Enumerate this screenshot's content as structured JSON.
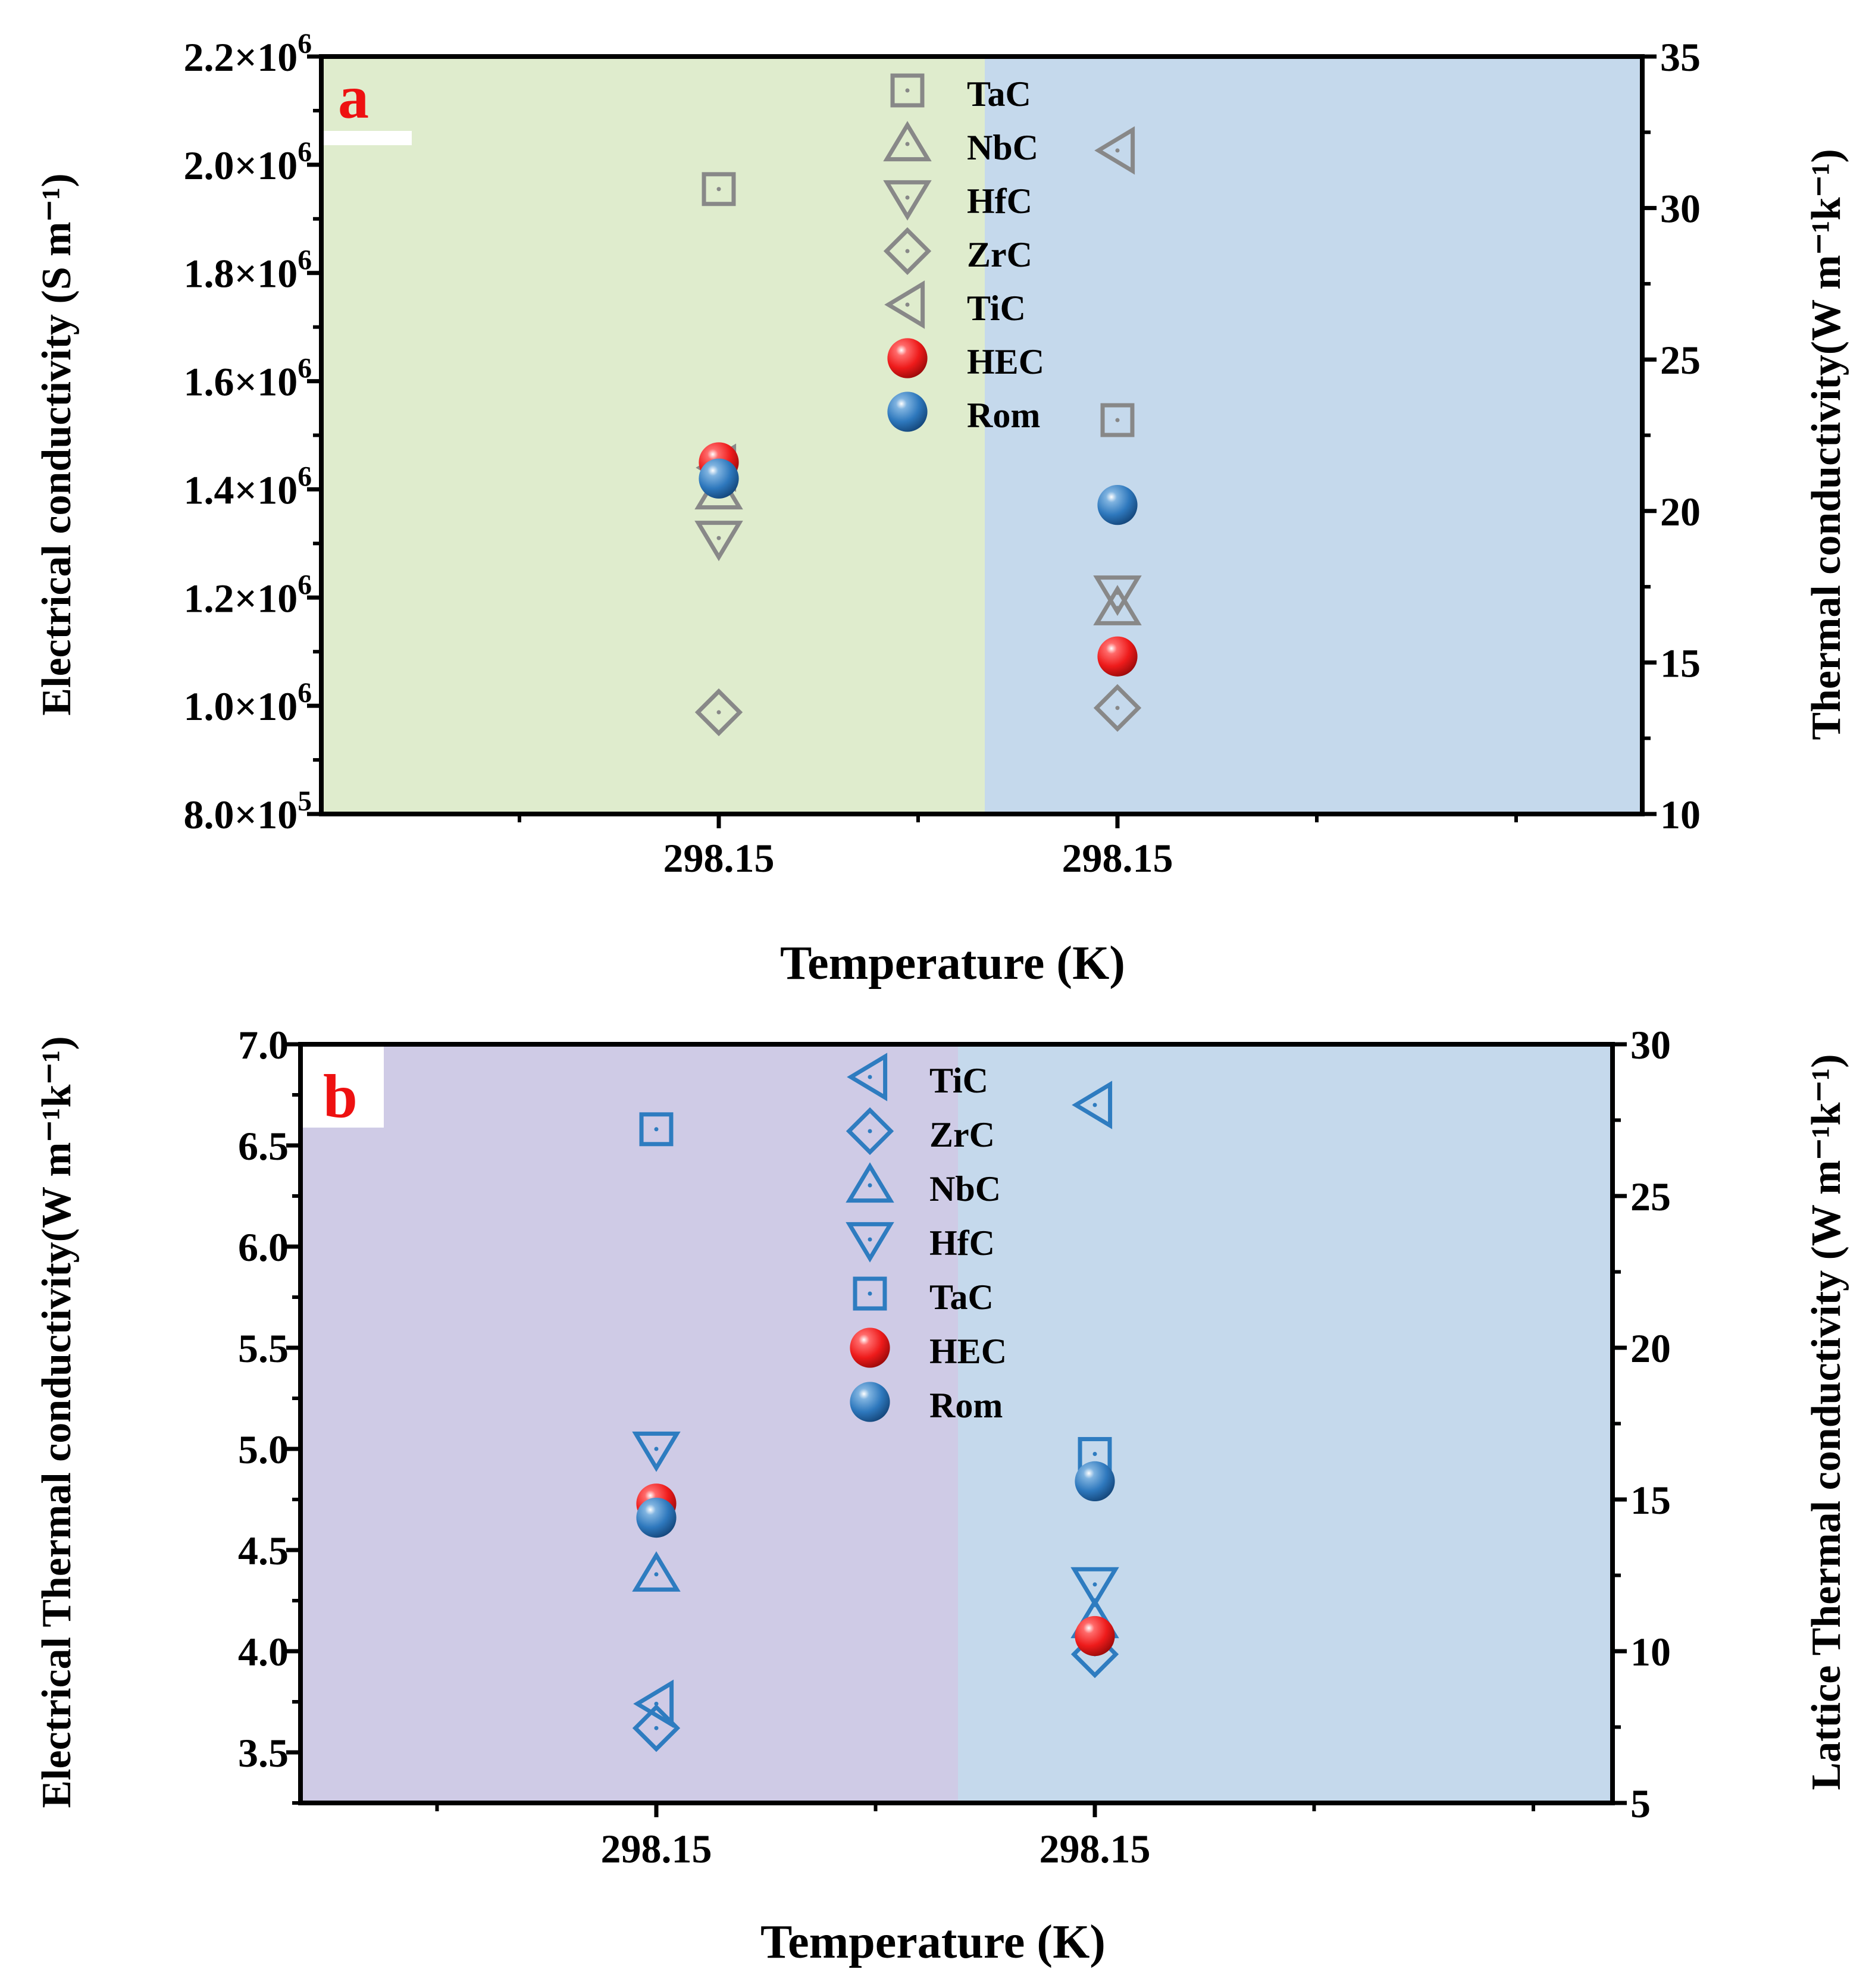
{
  "chart_data": [
    {
      "type": "scatter",
      "panel_label": "a",
      "xlabel": "Temperature (K)",
      "categories": [
        "298.15",
        "298.15"
      ],
      "left_axis": {
        "label": "Electrical conductivity (S m⁻¹)",
        "ylim": [
          800000,
          2200000
        ],
        "major_ticks": [
          800000,
          1000000,
          1200000,
          1400000,
          1600000,
          1800000,
          2000000,
          2200000
        ],
        "tick_mantissas": [
          "8.0",
          "1.0",
          "1.2",
          "1.4",
          "1.6",
          "1.8",
          "2.0",
          "2.2"
        ],
        "tick_exponents": [
          "5",
          "6",
          "6",
          "6",
          "6",
          "6",
          "6",
          "6"
        ]
      },
      "right_axis": {
        "label": "Thermal conductivity(W m⁻¹k⁻¹)",
        "ylim": [
          10,
          35
        ],
        "major_ticks": [
          10,
          15,
          20,
          25,
          30,
          35
        ],
        "tick_labels": [
          "10",
          "15",
          "20",
          "25",
          "30",
          "35"
        ]
      },
      "background_colors": [
        "#dfeccd",
        "#c5d9ec"
      ],
      "marker_color": "#888888",
      "series": [
        {
          "name": "TaC",
          "marker": "square",
          "axis": "mixed",
          "values": [
            1955000,
            23.0
          ]
        },
        {
          "name": "NbC",
          "marker": "triangle-up",
          "axis": "mixed",
          "values": [
            1395000,
            16.8
          ]
        },
        {
          "name": "HfC",
          "marker": "triangle-down",
          "axis": "mixed",
          "values": [
            1310000,
            17.3
          ]
        },
        {
          "name": "ZrC",
          "marker": "diamond",
          "axis": "mixed",
          "values": [
            988000,
            13.5
          ]
        },
        {
          "name": "TiC",
          "marker": "triangle-left",
          "axis": "mixed",
          "values": [
            1440000,
            31.9
          ]
        },
        {
          "name": "HEC",
          "marker": "sphere-red",
          "axis": "mixed",
          "values": [
            1450000,
            15.2
          ]
        },
        {
          "name": "Rom",
          "marker": "sphere-blue",
          "axis": "mixed",
          "values": [
            1420000,
            20.2
          ]
        }
      ]
    },
    {
      "type": "scatter",
      "panel_label": "b",
      "xlabel": "Temperature (K)",
      "categories": [
        "298.15",
        "298.15"
      ],
      "left_axis": {
        "label": "Electrical Thermal conductivity(W m⁻¹k⁻¹)",
        "ylim": [
          3.25,
          7.0
        ],
        "major_ticks": [
          3.5,
          4.0,
          4.5,
          5.0,
          5.5,
          6.0,
          6.5,
          7.0
        ],
        "tick_labels": [
          "3.5",
          "4.0",
          "4.5",
          "5.0",
          "5.5",
          "6.0",
          "6.5",
          "7.0"
        ]
      },
      "right_axis": {
        "label": "Lattice Thermal conductivity (W m⁻¹k⁻¹)",
        "ylim": [
          5,
          30
        ],
        "major_ticks": [
          5,
          10,
          15,
          20,
          25,
          30
        ],
        "tick_labels": [
          "5",
          "10",
          "15",
          "20",
          "25",
          "30"
        ]
      },
      "background_colors": [
        "#cfcbe6",
        "#c5d9ec"
      ],
      "marker_color": "#2e7cc0",
      "series": [
        {
          "name": "TiC",
          "marker": "triangle-left",
          "axis": "mixed",
          "values": [
            3.74,
            28.0
          ]
        },
        {
          "name": "ZrC",
          "marker": "diamond",
          "axis": "mixed",
          "values": [
            3.62,
            9.9
          ]
        },
        {
          "name": "NbC",
          "marker": "triangle-up",
          "axis": "mixed",
          "values": [
            4.38,
            11.0
          ]
        },
        {
          "name": "HfC",
          "marker": "triangle-down",
          "axis": "mixed",
          "values": [
            5.0,
            12.2
          ]
        },
        {
          "name": "TaC",
          "marker": "square",
          "axis": "mixed",
          "values": [
            6.58,
            16.5
          ]
        },
        {
          "name": "HEC",
          "marker": "sphere-red",
          "axis": "mixed",
          "values": [
            4.73,
            10.5
          ]
        },
        {
          "name": "Rom",
          "marker": "sphere-blue",
          "axis": "mixed",
          "values": [
            4.66,
            15.6
          ]
        }
      ]
    }
  ]
}
